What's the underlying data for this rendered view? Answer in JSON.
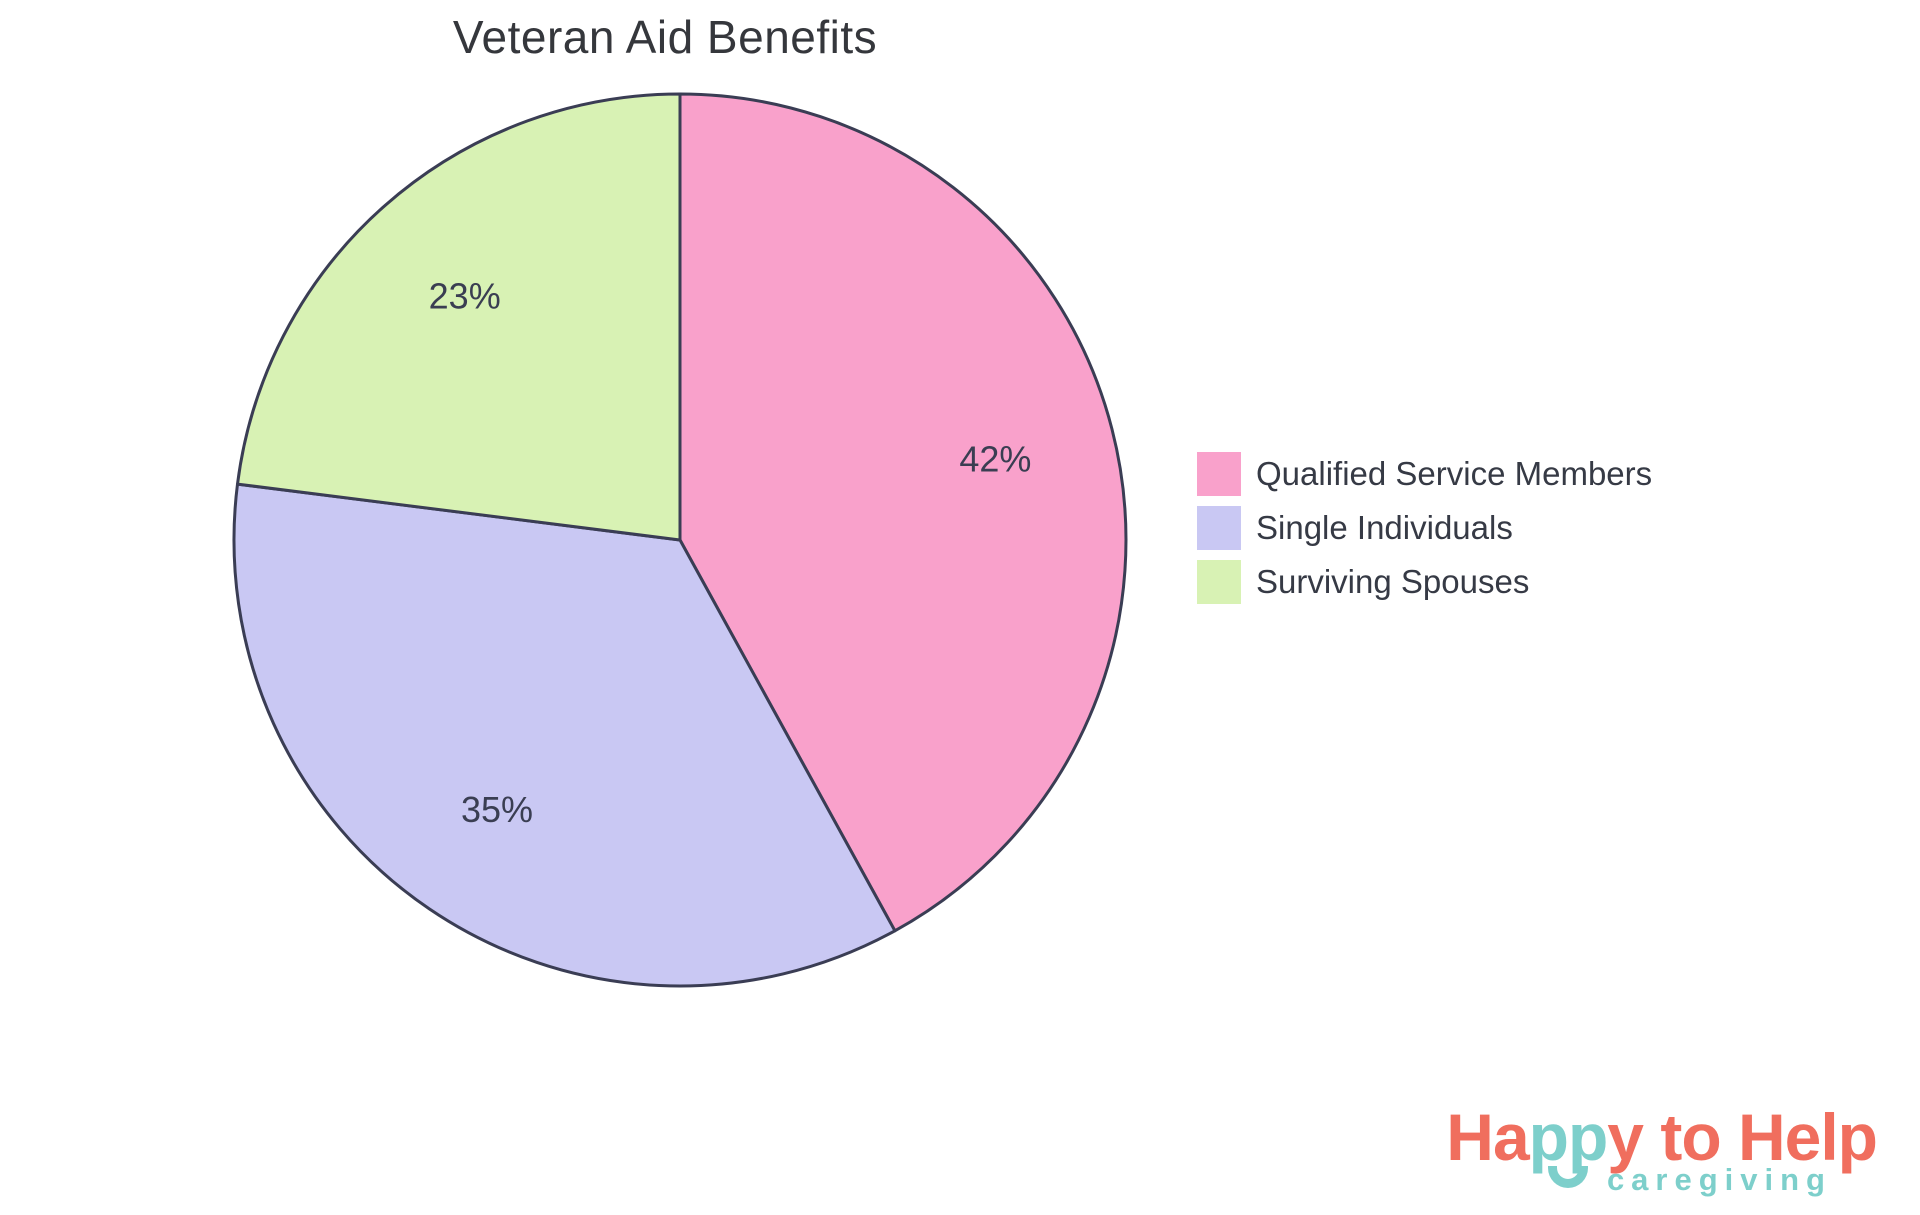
{
  "chart_data": {
    "type": "pie",
    "title": "Veteran Aid Benefits",
    "labels": [
      "Qualified Service Members",
      "Single Individuals",
      "Surviving Spouses"
    ],
    "values": [
      42,
      35,
      23
    ],
    "unit": "%",
    "value_labels": [
      "42%",
      "35%",
      "23%"
    ],
    "colors": [
      "#f9a1cb",
      "#c9c8f3",
      "#d8f2b4"
    ],
    "slice_border_color": "#3a3d54",
    "start_angle_deg": 90,
    "direction": "clockwise",
    "label_position": "inside",
    "legend_position": "right",
    "title_color": "#35373c",
    "inside_label_color": "#3a3e52",
    "legend_text_color": "#363a45"
  },
  "legend": {
    "items": [
      {
        "label": "Qualified Service Members",
        "color": "#f9a1cb"
      },
      {
        "label": "Single Individuals",
        "color": "#c9c8f3"
      },
      {
        "label": "Surviving Spouses",
        "color": "#d8f2b4"
      }
    ]
  },
  "logo": {
    "part1": "Ha",
    "part2": "pp",
    "part3": "y to Help",
    "tagline": "caregiving",
    "coral": "#f06e5e",
    "teal": "#7dcfcb"
  }
}
